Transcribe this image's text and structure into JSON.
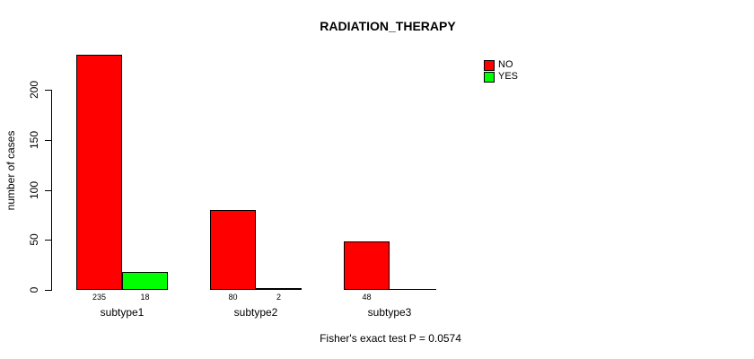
{
  "chart_data": {
    "type": "bar",
    "title": "RADIATION_THERAPY",
    "ylabel": "number of cases",
    "xlabel": "",
    "categories": [
      "subtype1",
      "subtype2",
      "subtype3"
    ],
    "series": [
      {
        "name": "NO",
        "color": "#FF0000",
        "values": [
          235,
          80,
          48
        ]
      },
      {
        "name": "YES",
        "color": "#00FF00",
        "values": [
          18,
          2,
          0
        ]
      }
    ],
    "bar_value_labels": [
      [
        "235",
        "80",
        "48"
      ],
      [
        "18",
        "2",
        ""
      ]
    ],
    "yticks": [
      0,
      50,
      100,
      150,
      200
    ],
    "ylim": [
      0,
      240
    ],
    "grid": false,
    "legend_position": "top-right",
    "annotation": "Fisher's exact test P = 0.0574"
  }
}
